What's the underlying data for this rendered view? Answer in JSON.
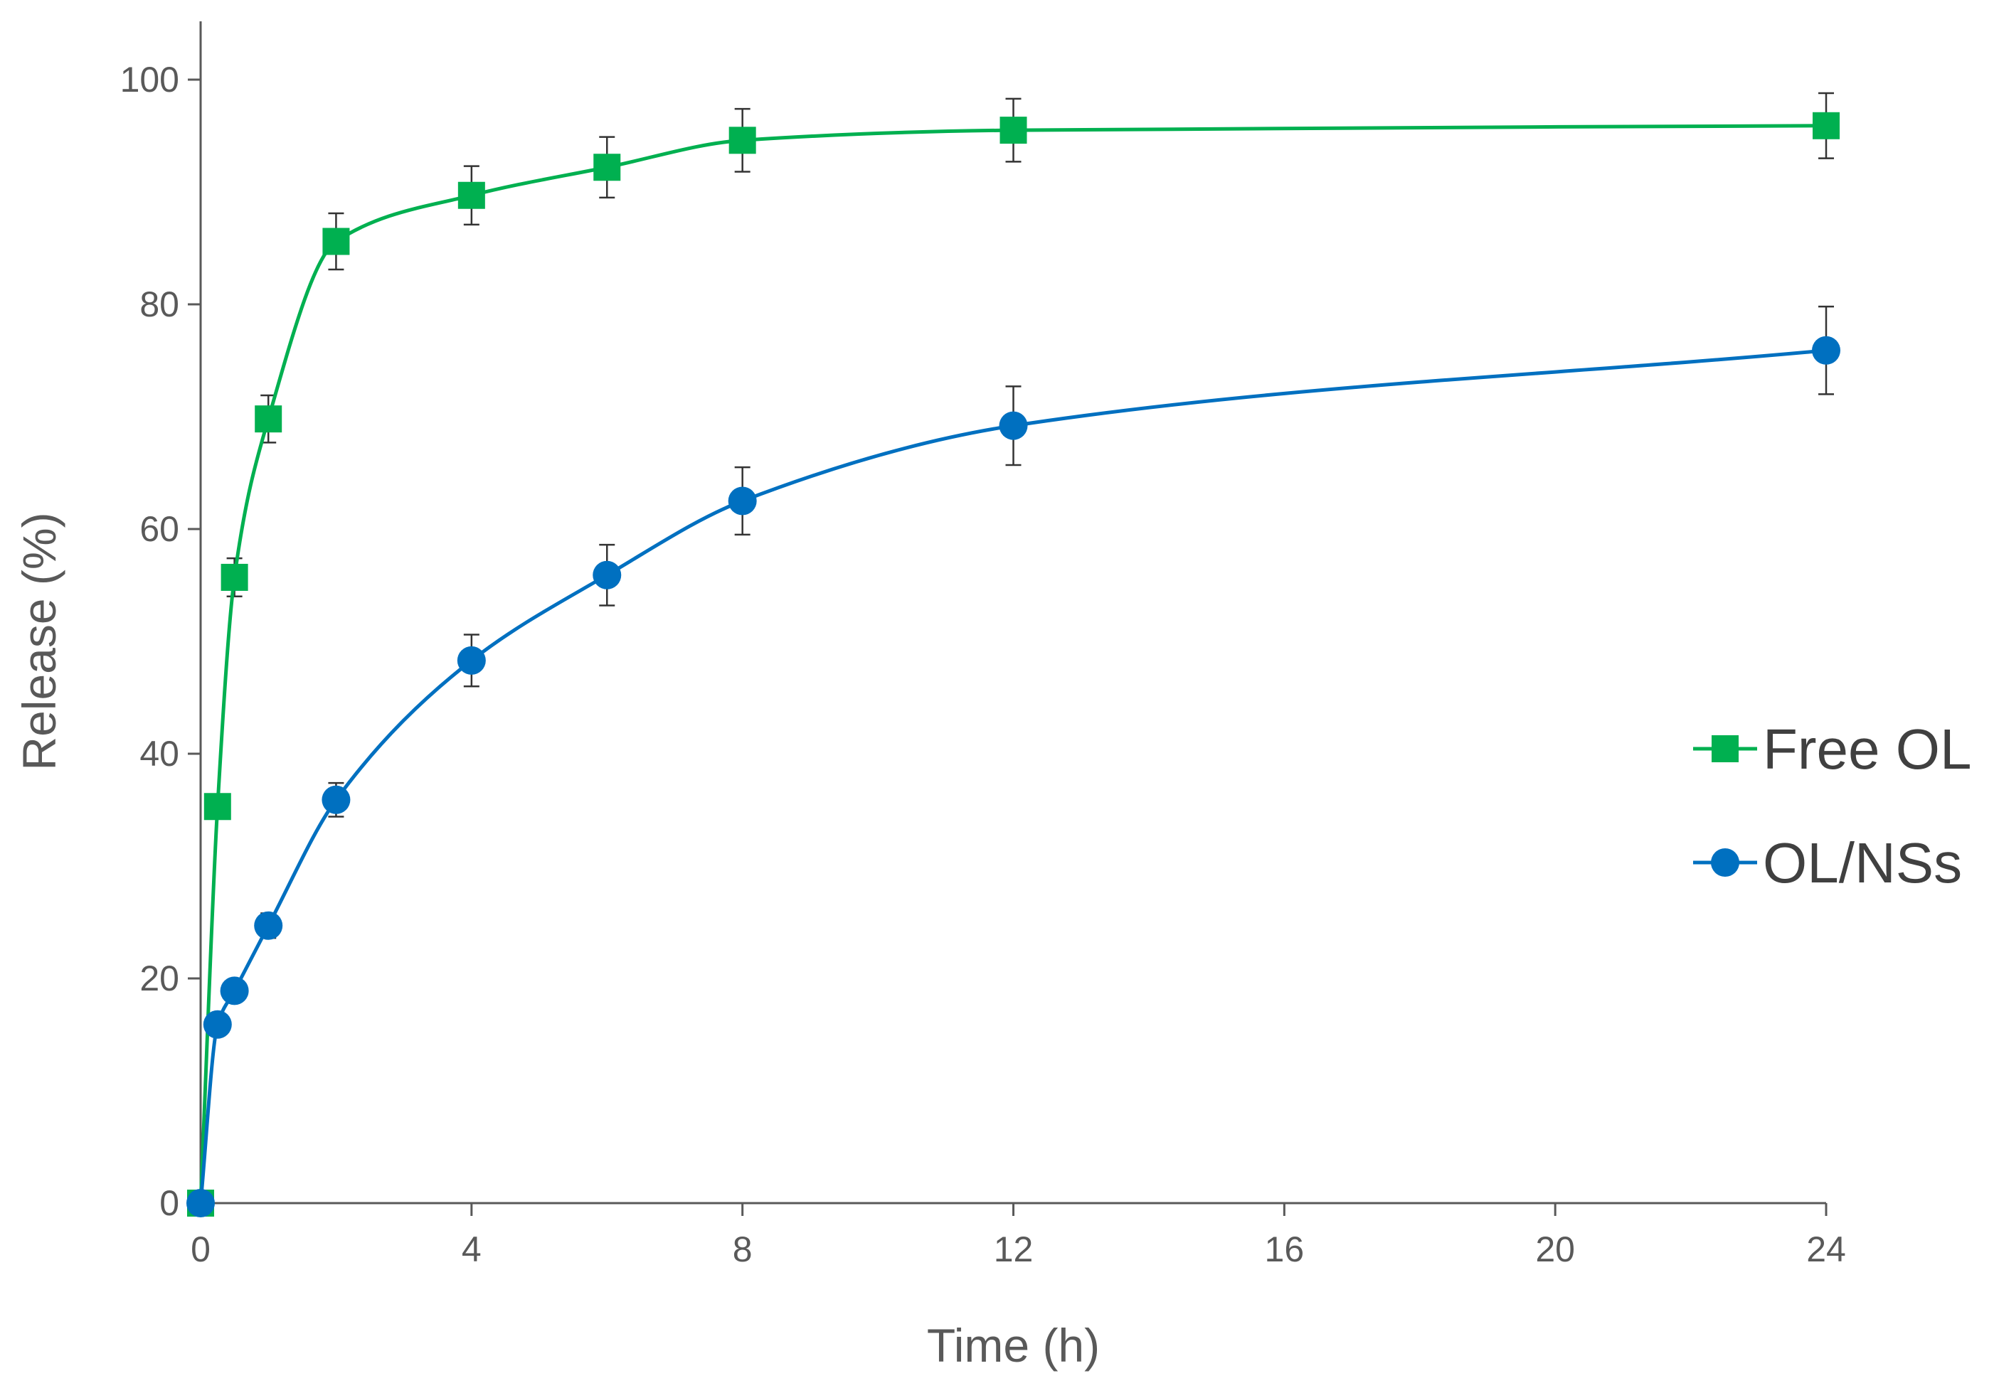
{
  "chart_data": {
    "type": "line",
    "xlabel": "Time (h)",
    "ylabel": "Release (%)",
    "xlim": [
      0,
      24
    ],
    "ylim": [
      0,
      100
    ],
    "x_ticks": [
      0,
      4,
      8,
      12,
      16,
      20,
      24
    ],
    "y_ticks": [
      0,
      20,
      40,
      60,
      80,
      100
    ],
    "grid": false,
    "legend_position": "right",
    "series": [
      {
        "name": "Free OL",
        "color": "#00b050",
        "marker": "square",
        "x": [
          0,
          0.25,
          0.5,
          1,
          2,
          4,
          6,
          8,
          12,
          24
        ],
        "y": [
          0,
          35.3,
          55.7,
          69.8,
          85.6,
          89.7,
          92.2,
          94.6,
          95.5,
          95.9
        ],
        "error": [
          0,
          0,
          1.7,
          2.1,
          2.5,
          2.6,
          2.7,
          2.8,
          2.8,
          2.9
        ]
      },
      {
        "name": "OL/NSs",
        "color": "#0070c0",
        "marker": "circle",
        "x": [
          0,
          0.25,
          0.5,
          1,
          2,
          4,
          6,
          8,
          12,
          24
        ],
        "y": [
          0,
          15.9,
          18.9,
          24.7,
          35.9,
          48.3,
          55.9,
          62.5,
          69.2,
          75.9
        ],
        "error": [
          0,
          0,
          0,
          1.1,
          1.5,
          2.3,
          2.7,
          3.0,
          3.5,
          3.9
        ]
      }
    ]
  }
}
